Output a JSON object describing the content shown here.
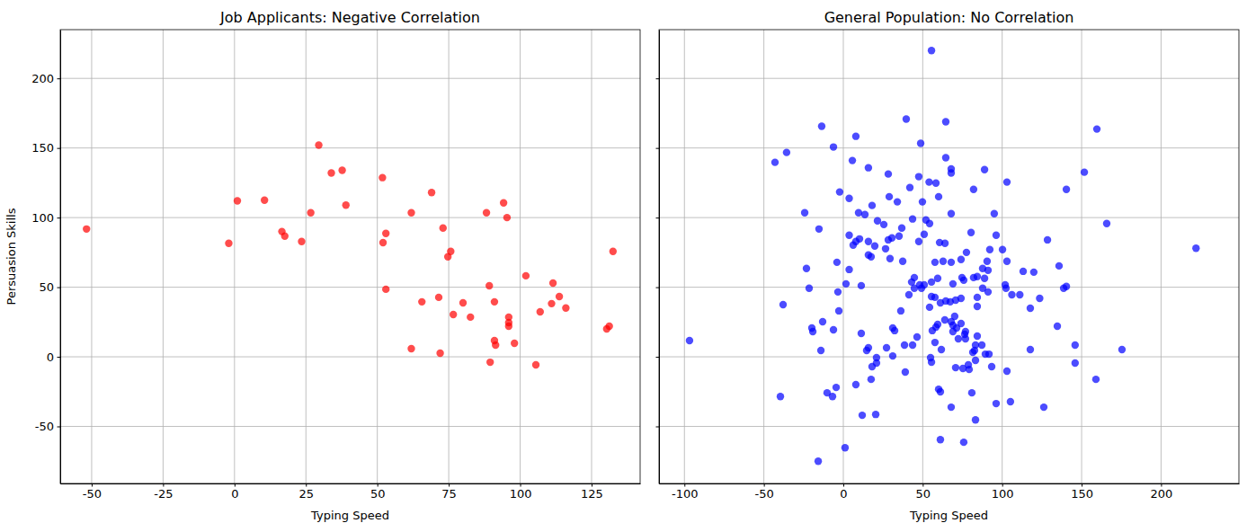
{
  "chart_data": [
    {
      "type": "scatter",
      "title": "Job Applicants: Negative Correlation",
      "x_label": "Typing Speed",
      "y_label": "Persuasion Skills",
      "color": "#ff0000",
      "marker": "o",
      "grid": true,
      "xlim": [
        -61,
        142
      ],
      "ylim": [
        -91,
        235
      ],
      "xticks": [
        -50,
        -25,
        0,
        25,
        50,
        75,
        100,
        125
      ],
      "yticks": [
        -50,
        0,
        50,
        100,
        150,
        200
      ],
      "x": [
        -51.8,
        -2,
        1,
        10.5,
        16.6,
        17.6,
        23.5,
        26.7,
        29.5,
        33.9,
        37.7,
        39,
        51.8,
        52,
        53,
        53,
        61.9,
        61.9,
        65.6,
        69,
        71.5,
        72,
        73,
        74.7,
        75.7,
        76.6,
        80,
        82.6,
        88.2,
        89.2,
        89.5,
        91,
        91,
        91.4,
        94.2,
        95.4,
        96,
        96,
        96,
        98,
        102,
        105.5,
        107,
        111,
        111.5,
        113.7,
        116,
        130.3,
        131.2,
        132.5
      ],
      "values": [
        91.8,
        81.5,
        112,
        112.5,
        90,
        86.7,
        82.8,
        103.5,
        152,
        132,
        134,
        109,
        128.7,
        82,
        88.6,
        48.5,
        103.5,
        5.8,
        39.5,
        118,
        42.7,
        2.6,
        92.5,
        71.8,
        75.7,
        30.4,
        38.8,
        28.5,
        103.5,
        51,
        -3.9,
        39.5,
        11.6,
        8.4,
        110.6,
        100,
        28.5,
        24.6,
        22,
        9.7,
        58.2,
        -5.8,
        32.3,
        38.2,
        53,
        43.3,
        35,
        20,
        22,
        75.7
      ]
    },
    {
      "type": "scatter",
      "title": "General Population: No Correlation",
      "x_label": "Typing Speed",
      "color": "#0000ff",
      "marker": "o",
      "grid": true,
      "tick_labels": "x",
      "xlim": [
        -116,
        249
      ],
      "ylim": [
        -91,
        235
      ],
      "xticks": [
        -100,
        -50,
        0,
        50,
        100,
        150,
        200
      ],
      "yticks": [
        -50,
        0,
        50,
        100,
        150,
        200
      ],
      "x": [
        55.5,
        39.6,
        64.5,
        159.6,
        -13.6,
        7.9,
        48.7,
        -6.2,
        -35.7,
        -43,
        5.7,
        64.5,
        67.9,
        88.9,
        151.7,
        15.8,
        28.3,
        67.9,
        54,
        47.5,
        58.3,
        103,
        41.9,
        82,
        140.4,
        -2.3,
        3.7,
        28.9,
        60,
        49.8,
        18.1,
        34,
        -24.3,
        9.6,
        13.6,
        67.9,
        95,
        43.6,
        52,
        21.5,
        25.5,
        54.3,
        165.8,
        -15.3,
        3.7,
        36.8,
        35.1,
        50.9,
        80.4,
        96.2,
        128.5,
        28.3,
        30.6,
        10.2,
        7.9,
        15.8,
        47.5,
        60.6,
        64,
        6.2,
        19.8,
        26.6,
        92.2,
        100.2,
        77.5,
        15.8,
        17.5,
        29.4,
        37.4,
        103,
        67.9,
        57.7,
        62.8,
        74.1,
        -4,
        90.5,
        135.8,
        -23.2,
        3.7,
        87.7,
        91.1,
        113.2,
        119.9,
        44.7,
        43,
        59.4,
        74.7,
        82,
        84.3,
        48.1,
        55.5,
        69,
        75.8,
        88.9,
        87.7,
        -21.5,
        1.7,
        11.3,
        44.7,
        49.2,
        50.9,
        101.9,
        102.4,
        140.4,
        138.7,
        -3.4,
        91.1,
        41.3,
        55.5,
        57.7,
        74.1,
        84.3,
        106.1,
        111.1,
        123.6,
        64.5,
        67.3,
        70.7,
        54.3,
        61.1,
        -37.9,
        -2.8,
        36.2,
        84.3,
        117.7,
        70.1,
        63.9,
        59.4,
        67.9,
        74.1,
        69,
        -13,
        134.7,
        -19.8,
        58.3,
        71.3,
        31.1,
        32.3,
        56,
        69,
        76.9,
        -19.2,
        -6.2,
        11.3,
        76.4,
        46.4,
        84.3,
        72.4,
        76.9,
        43.6,
        87.2,
        83.2,
        57.7,
        38.5,
        145.9,
        15.8,
        27.2,
        61.7,
        82.6,
        117.7,
        175.4,
        -14.1,
        14.7,
        81.5,
        89.4,
        91.7,
        54.9,
        31.1,
        20.9,
        83.2,
        55.5,
        145.9,
        20.9,
        78.7,
        18.1,
        93.4,
        70.7,
        75.3,
        79.2,
        159,
        103,
        17.5,
        39,
        7.9,
        -4.5,
        60,
        61.1,
        80.9,
        -10.2,
        -6.8,
        -39.6,
        96.2,
        105.2,
        67.9,
        126.2,
        11.9,
        20.4,
        83.2,
        61.1,
        75.8,
        1.1,
        -15.8,
        -96.8,
        222
      ],
      "values": [
        220,
        170.8,
        168.8,
        163.6,
        165.6,
        158.4,
        153.3,
        150.7,
        146.8,
        139.7,
        141,
        143,
        135,
        134.5,
        132.6,
        135.8,
        131.3,
        132,
        125.5,
        129.4,
        124.8,
        125.5,
        121.6,
        120.3,
        120.3,
        118.4,
        113.8,
        115,
        115,
        111.3,
        108.7,
        111.3,
        103.5,
        103.5,
        102.2,
        102.8,
        102.8,
        99,
        98.3,
        97.7,
        95,
        95.7,
        95.7,
        91.8,
        87.3,
        92.5,
        86.7,
        88,
        89.3,
        87.3,
        84,
        84,
        85.4,
        84.7,
        82.8,
        82.8,
        82.8,
        82.1,
        81.5,
        80.2,
        79.6,
        77.6,
        77,
        77,
        75,
        73.1,
        71.8,
        70.5,
        68.6,
        68.6,
        67.9,
        67.9,
        68.6,
        69.9,
        67.9,
        68.6,
        65.3,
        63.4,
        62.7,
        63.4,
        62.1,
        61.4,
        60.8,
        56.9,
        53.7,
        56.3,
        56.9,
        56.9,
        57.6,
        51.7,
        53.7,
        52.4,
        55,
        56.3,
        49.2,
        49.2,
        52.4,
        51.1,
        49.2,
        49.2,
        51.7,
        51.7,
        49.2,
        50.5,
        49.2,
        46.6,
        46.6,
        44.6,
        43.3,
        42.7,
        42,
        42.7,
        44.6,
        44.6,
        42,
        40.1,
        39.5,
        40.7,
        35.6,
        38.8,
        37.5,
        33,
        33,
        36.2,
        34.9,
        29.1,
        26.5,
        23.3,
        25.2,
        23.9,
        22.6,
        25.2,
        22,
        20.7,
        21.3,
        20.7,
        20.7,
        18.8,
        18.8,
        18.1,
        18.1,
        18.1,
        19.4,
        16.8,
        16.2,
        14.2,
        14.9,
        12.9,
        12.9,
        8.4,
        8.4,
        8.4,
        10.3,
        8.4,
        8.4,
        6.5,
        6.5,
        5.2,
        4.5,
        5.2,
        5.2,
        4.5,
        4.5,
        3.2,
        1.9,
        1.9,
        -0.6,
        0.6,
        -0.6,
        -2.6,
        -3.9,
        -4.5,
        -4.5,
        -5.8,
        -7.1,
        -7.1,
        -7.8,
        -8.4,
        -9.1,
        -16.2,
        -10.3,
        -16.2,
        -11,
        -20,
        -22,
        -23.3,
        -25.2,
        -25.9,
        -25.9,
        -28.5,
        -28.5,
        -33.6,
        -32.3,
        -36.2,
        -36.2,
        -42,
        -41.4,
        -45.3,
        -59.5,
        -61.4,
        -65.3,
        -75,
        11.6,
        78
      ]
    }
  ]
}
